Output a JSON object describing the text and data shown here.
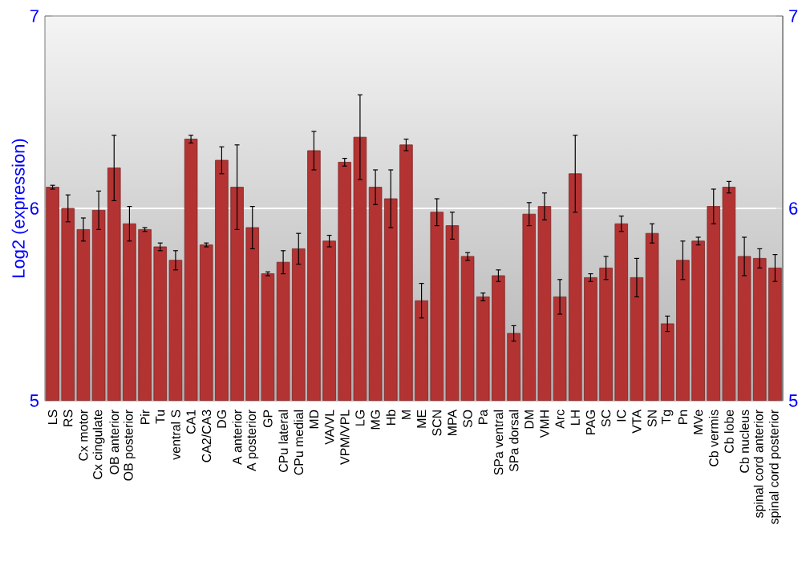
{
  "chart_data": {
    "type": "bar",
    "ylabel": "Log2 (expression)",
    "categories": [
      "LS",
      "RS",
      "Cx motor",
      "Cx cingulate",
      "OB anterior",
      "OB posterior",
      "Pir",
      "Tu",
      "ventral S",
      "CA1",
      "CA2/CA3",
      "DG",
      "A anterior",
      "A posterior",
      "GP",
      "CPu lateral",
      "CPu medial",
      "MD",
      "VA/VL",
      "VPM/VPL",
      "LG",
      "MG",
      "Hb",
      "M",
      "ME",
      "SCN",
      "MPA",
      "SO",
      "Pa",
      "SPa ventral",
      "SPa dorsal",
      "DM",
      "VMH",
      "Arc",
      "LH",
      "PAG",
      "SC",
      "IC",
      "VTA",
      "SN",
      "Tg",
      "Pn",
      "MVe",
      "Cb vermis",
      "Cb lobe",
      "Cb nucleus",
      "spinal cord anterior",
      "spinal cord posterior"
    ],
    "values": [
      6.11,
      6.0,
      5.89,
      5.99,
      6.21,
      5.92,
      5.89,
      5.8,
      5.73,
      6.36,
      5.81,
      6.25,
      6.11,
      5.9,
      5.66,
      5.72,
      5.79,
      6.3,
      5.83,
      6.24,
      6.37,
      6.11,
      6.05,
      6.33,
      5.52,
      5.98,
      5.91,
      5.75,
      5.54,
      5.65,
      5.35,
      5.97,
      6.01,
      5.54,
      6.18,
      5.64,
      5.69,
      5.92,
      5.64,
      5.87,
      5.4,
      5.73,
      5.83,
      6.01,
      6.11,
      5.75,
      5.74,
      5.69
    ],
    "errors": [
      0.01,
      0.07,
      0.06,
      0.1,
      0.17,
      0.09,
      0.01,
      0.02,
      0.05,
      0.02,
      0.01,
      0.07,
      0.22,
      0.11,
      0.01,
      0.06,
      0.08,
      0.1,
      0.03,
      0.02,
      0.22,
      0.09,
      0.15,
      0.03,
      0.09,
      0.07,
      0.07,
      0.02,
      0.02,
      0.03,
      0.04,
      0.06,
      0.07,
      0.09,
      0.2,
      0.02,
      0.06,
      0.04,
      0.1,
      0.05,
      0.04,
      0.1,
      0.02,
      0.09,
      0.03,
      0.1,
      0.05,
      0.07
    ],
    "color": "#b33333",
    "ylim": [
      5,
      7
    ],
    "yticks": [
      5,
      6,
      7
    ],
    "y2lim": [
      5,
      7
    ],
    "y2ticks": [
      5,
      6,
      7
    ],
    "grid": "y"
  }
}
